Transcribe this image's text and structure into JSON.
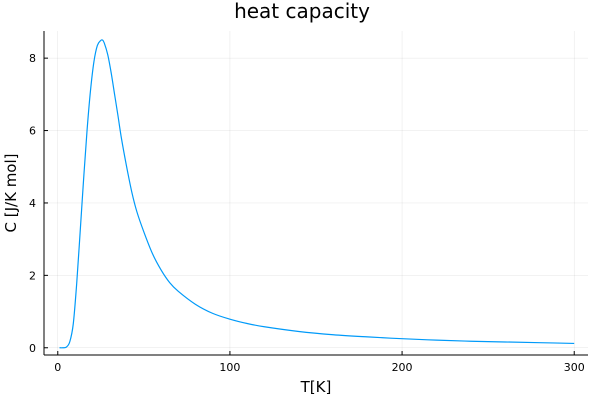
{
  "chart_data": {
    "type": "line",
    "title": "heat capacity",
    "xlabel": "T[K]",
    "ylabel": "C [J/K mol]",
    "xlim": [
      -8,
      308
    ],
    "ylim": [
      -0.2,
      8.75
    ],
    "xticks": [
      0,
      100,
      200,
      300
    ],
    "xtick_labels": [
      "0",
      "100",
      "200",
      "300"
    ],
    "yticks": [
      0,
      2,
      4,
      6,
      8
    ],
    "ytick_labels": [
      "0",
      "2",
      "4",
      "6",
      "8"
    ],
    "grid": true,
    "legend": "none",
    "series": [
      {
        "color": "#009AF9",
        "x": [
          1,
          3,
          5,
          7,
          9,
          11,
          13,
          15,
          17,
          19,
          21,
          23,
          25,
          26,
          27,
          29,
          31,
          33,
          35,
          37,
          40,
          43,
          46,
          50,
          55,
          60,
          65,
          70,
          80,
          90,
          100,
          110,
          120,
          140,
          160,
          180,
          200,
          220,
          240,
          260,
          280,
          300
        ],
        "y": [
          0.0,
          0.0,
          0.02,
          0.17,
          0.66,
          1.78,
          3.2,
          4.65,
          6.0,
          7.1,
          7.9,
          8.35,
          8.49,
          8.5,
          8.42,
          8.1,
          7.6,
          7.0,
          6.4,
          5.78,
          5.0,
          4.3,
          3.75,
          3.2,
          2.6,
          2.15,
          1.8,
          1.56,
          1.2,
          0.95,
          0.79,
          0.67,
          0.58,
          0.45,
          0.36,
          0.3,
          0.25,
          0.21,
          0.18,
          0.16,
          0.14,
          0.12
        ]
      }
    ]
  }
}
